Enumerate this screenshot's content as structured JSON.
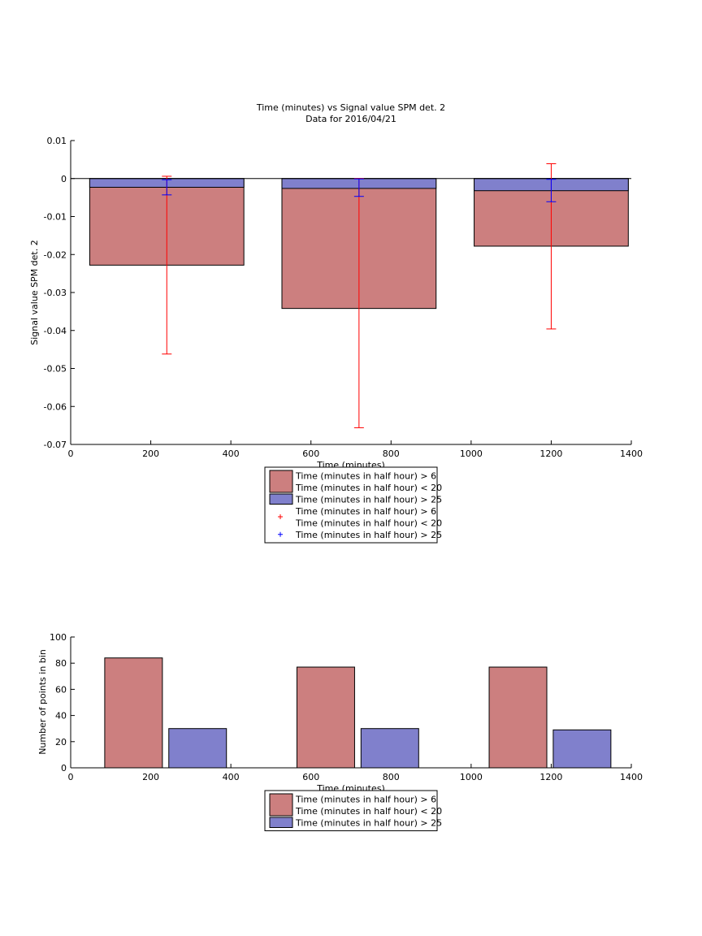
{
  "colors": {
    "bar_red": "#cc7f7f",
    "bar_blue": "#8080cc",
    "err_red": "#ff0000",
    "err_blue": "#0000ff",
    "axis": "#000000"
  },
  "chart_data": [
    {
      "type": "bar",
      "title": "Time (minutes) vs Signal value SPM det. 2",
      "subtitle": "Data for 2016/04/21",
      "xlabel": "Time (minutes)",
      "ylabel": "Signal value SPM det. 2",
      "xlim": [
        0,
        1400
      ],
      "ylim": [
        -0.07,
        0.01
      ],
      "xticks": [
        0,
        200,
        400,
        600,
        800,
        1000,
        1200,
        1400
      ],
      "yticks": [
        0.01,
        0,
        -0.01,
        -0.02,
        -0.03,
        -0.04,
        -0.05,
        -0.06,
        -0.07
      ],
      "ytick_labels": [
        "0.01",
        "0",
        "-0.01",
        "-0.02",
        "-0.03",
        "-0.04",
        "-0.05",
        "-0.06",
        "-0.07"
      ],
      "bar_width": 385,
      "x": [
        240,
        720,
        1200
      ],
      "series": [
        {
          "name": "Time (minutes in half hour) > 6 Time (minutes in half hour) < 20",
          "color": "bar_red",
          "values": [
            -0.0228,
            -0.0342,
            -0.0178
          ],
          "error_low": [
            -0.0462,
            -0.0656,
            -0.0396
          ],
          "error_high": [
            0.0006,
            0.0,
            0.0039
          ]
        },
        {
          "name": "Time (minutes in half hour) > 25",
          "color": "bar_blue",
          "values": [
            -0.0023,
            -0.0026,
            -0.0032
          ],
          "error_low": [
            -0.0043,
            -0.0047,
            -0.0061
          ],
          "error_high": [
            -0.0003,
            -0.0001,
            -0.0002
          ]
        }
      ],
      "legend": {
        "position": "below",
        "entries": [
          {
            "kind": "patch",
            "color": "bar_red",
            "lines": [
              "Time (minutes in half hour) > 6",
              "Time (minutes in half hour) < 20"
            ]
          },
          {
            "kind": "patch",
            "color": "bar_blue",
            "lines": [
              "Time (minutes in half hour) > 25"
            ]
          },
          {
            "kind": "marker",
            "color": "err_red",
            "lines": [
              "Time (minutes in half hour) > 6",
              "Time (minutes in half hour) < 20"
            ]
          },
          {
            "kind": "marker",
            "color": "err_blue",
            "lines": [
              "Time (minutes in half hour) > 25"
            ]
          }
        ]
      }
    },
    {
      "type": "bar",
      "xlabel": "Time (minutes)",
      "ylabel": "Number of points in bin",
      "xlim": [
        0,
        1400
      ],
      "ylim": [
        0,
        100
      ],
      "xticks": [
        0,
        200,
        400,
        600,
        800,
        1000,
        1200,
        1400
      ],
      "yticks": [
        0,
        20,
        40,
        60,
        80,
        100
      ],
      "ytick_labels": [
        "0",
        "20",
        "40",
        "60",
        "80",
        "100"
      ],
      "series": [
        {
          "name": "Time (minutes in half hour) > 6 Time (minutes in half hour) < 20",
          "color": "bar_red",
          "x_ranges": [
            [
              85,
              229
            ],
            [
              565,
              709
            ],
            [
              1045,
              1189
            ]
          ],
          "values": [
            84,
            77,
            77
          ]
        },
        {
          "name": "Time (minutes in half hour) > 25",
          "color": "bar_blue",
          "x_ranges": [
            [
              245,
              389
            ],
            [
              725,
              869
            ],
            [
              1205,
              1349
            ]
          ],
          "values": [
            30,
            30,
            29
          ]
        }
      ],
      "legend": {
        "position": "below",
        "entries": [
          {
            "kind": "patch",
            "color": "bar_red",
            "lines": [
              "Time (minutes in half hour) > 6",
              "Time (minutes in half hour) < 20"
            ]
          },
          {
            "kind": "patch",
            "color": "bar_blue",
            "lines": [
              "Time (minutes in half hour) > 25"
            ]
          }
        ]
      }
    }
  ]
}
